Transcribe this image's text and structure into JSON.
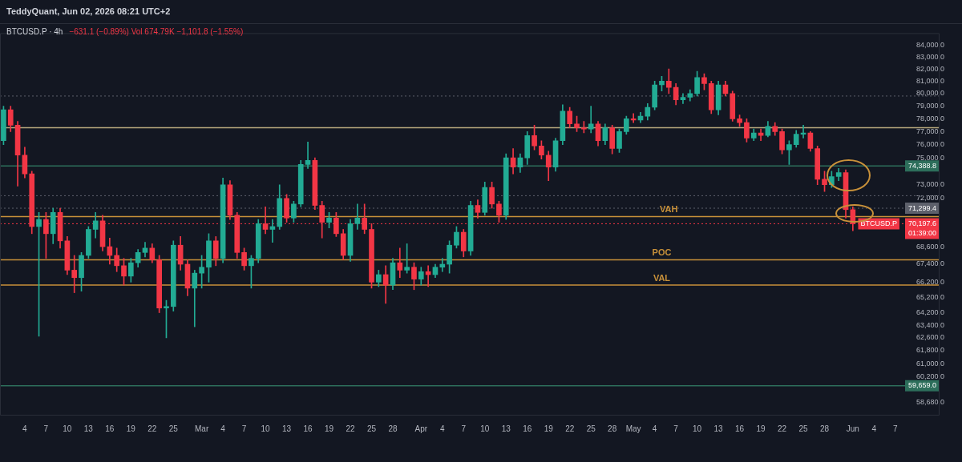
{
  "chart_data": {
    "type": "candlestick",
    "title": "BTCUSD.P · 4h",
    "subtitle": "−631.1 (−0.89%)  Vol 674.79K  −1,101.8 (−1.55%)",
    "annotations": [
      "TeddyQuant, Jun 02, 2026 08:21 UTC+2",
      {
        "text": "VAH",
        "x": "2026-05-06",
        "y": 70700
      },
      {
        "text": "POC",
        "x": "2026-05-05",
        "y": 67700
      },
      {
        "text": "VAL",
        "x": "2026-05-05",
        "y": 66000
      },
      {
        "text": "BTCUSD.P",
        "x": "2026-06-04T16:00",
        "y": 70197.6
      }
    ],
    "x": [
      "2026-02-01",
      "2026-02-02",
      "2026-02-03",
      "2026-02-04",
      "2026-02-05",
      "2026-02-06",
      "2026-02-07",
      "2026-02-08",
      "2026-02-09",
      "2026-02-10",
      "2026-02-11",
      "2026-02-12",
      "2026-02-13",
      "2026-02-14",
      "2026-02-15",
      "2026-02-16",
      "2026-02-17",
      "2026-02-18",
      "2026-02-19",
      "2026-02-20",
      "2026-02-21",
      "2026-02-22",
      "2026-02-23",
      "2026-02-24",
      "2026-02-25",
      "2026-02-26",
      "2026-02-27",
      "2026-02-28",
      "2026-03-01",
      "2026-03-02",
      "2026-03-03",
      "2026-03-04",
      "2026-03-05",
      "2026-03-06",
      "2026-03-07",
      "2026-03-08",
      "2026-03-09",
      "2026-03-10",
      "2026-03-11",
      "2026-03-12",
      "2026-03-13",
      "2026-03-14",
      "2026-03-15",
      "2026-03-16",
      "2026-03-17",
      "2026-03-18",
      "2026-03-19",
      "2026-03-20",
      "2026-03-21",
      "2026-03-22",
      "2026-03-23",
      "2026-03-24",
      "2026-03-25",
      "2026-03-26",
      "2026-03-27",
      "2026-03-28",
      "2026-03-29",
      "2026-03-30",
      "2026-03-31",
      "2026-04-01",
      "2026-04-02",
      "2026-04-03",
      "2026-04-04",
      "2026-04-05",
      "2026-04-06",
      "2026-04-07",
      "2026-04-08",
      "2026-04-09",
      "2026-04-10",
      "2026-04-11",
      "2026-04-12",
      "2026-04-13",
      "2026-04-14",
      "2026-04-15",
      "2026-04-16",
      "2026-04-17",
      "2026-04-18",
      "2026-04-19",
      "2026-04-20",
      "2026-04-21",
      "2026-04-22",
      "2026-04-23",
      "2026-04-24",
      "2026-04-25",
      "2026-04-26",
      "2026-04-27",
      "2026-04-28",
      "2026-04-29",
      "2026-04-30",
      "2026-05-01",
      "2026-05-02",
      "2026-05-03",
      "2026-05-04",
      "2026-05-05",
      "2026-05-06",
      "2026-05-07",
      "2026-05-08",
      "2026-05-09",
      "2026-05-10",
      "2026-05-11",
      "2026-05-12",
      "2026-05-13",
      "2026-05-14",
      "2026-05-15",
      "2026-05-16",
      "2026-05-17",
      "2026-05-18",
      "2026-05-19",
      "2026-05-20",
      "2026-05-21",
      "2026-05-22",
      "2026-05-23",
      "2026-05-24",
      "2026-05-25",
      "2026-05-26",
      "2026-05-27",
      "2026-05-28",
      "2026-05-29",
      "2026-05-30",
      "2026-05-31",
      "2026-06-01"
    ],
    "ohlc": [
      [
        76300,
        79000,
        76000,
        78700
      ],
      [
        78700,
        79000,
        77000,
        77500
      ],
      [
        77500,
        77800,
        72900,
        75200
      ],
      [
        75200,
        75800,
        73500,
        73800
      ],
      [
        73800,
        74000,
        69500,
        70000
      ],
      [
        70000,
        71000,
        62700,
        70500
      ],
      [
        70500,
        71000,
        67800,
        69500
      ],
      [
        69500,
        71300,
        68800,
        71000
      ],
      [
        71000,
        71300,
        68500,
        69000
      ],
      [
        69000,
        69300,
        66700,
        67000
      ],
      [
        67000,
        68000,
        65500,
        66500
      ],
      [
        66500,
        68200,
        65600,
        68000
      ],
      [
        68000,
        70000,
        67800,
        69800
      ],
      [
        69800,
        71000,
        69200,
        70400
      ],
      [
        70400,
        70800,
        68300,
        68600
      ],
      [
        68600,
        69200,
        67400,
        68000
      ],
      [
        68000,
        68500,
        66900,
        67300
      ],
      [
        67300,
        67800,
        66000,
        66600
      ],
      [
        66600,
        67800,
        66200,
        67500
      ],
      [
        67500,
        68400,
        67200,
        68200
      ],
      [
        68200,
        68900,
        67900,
        68500
      ],
      [
        68500,
        68800,
        67500,
        67700
      ],
      [
        67700,
        68000,
        64200,
        64500
      ],
      [
        64500,
        65000,
        62600,
        64600
      ],
      [
        64600,
        69000,
        64300,
        68700
      ],
      [
        68700,
        69300,
        67000,
        67400
      ],
      [
        67400,
        67700,
        65300,
        65800
      ],
      [
        65800,
        67000,
        63300,
        66800
      ],
      [
        66800,
        68000,
        65800,
        67200
      ],
      [
        67200,
        69500,
        66200,
        69000
      ],
      [
        69000,
        69300,
        67300,
        67800
      ],
      [
        67800,
        73500,
        67500,
        73000
      ],
      [
        73000,
        73300,
        70500,
        70800
      ],
      [
        70800,
        71000,
        67800,
        68200
      ],
      [
        68200,
        68500,
        67000,
        67300
      ],
      [
        67300,
        68000,
        65800,
        67800
      ],
      [
        67800,
        70500,
        67500,
        70200
      ],
      [
        70200,
        71400,
        69500,
        69800
      ],
      [
        69800,
        70500,
        68900,
        70000
      ],
      [
        70000,
        73000,
        69800,
        72000
      ],
      [
        72000,
        72300,
        70300,
        70600
      ],
      [
        70600,
        71800,
        70300,
        71600
      ],
      [
        71600,
        74800,
        71400,
        74500
      ],
      [
        74500,
        76200,
        74200,
        74800
      ],
      [
        74800,
        75000,
        71200,
        71500
      ],
      [
        71500,
        71800,
        69200,
        70300
      ],
      [
        70300,
        71000,
        69900,
        70600
      ],
      [
        70600,
        71000,
        69300,
        69500
      ],
      [
        69500,
        69800,
        67700,
        68000
      ],
      [
        68000,
        70500,
        67600,
        70200
      ],
      [
        70200,
        71600,
        69800,
        70600
      ],
      [
        70600,
        71600,
        69500,
        69800
      ],
      [
        69800,
        70200,
        65800,
        66200
      ],
      [
        66200,
        67000,
        65900,
        66700
      ],
      [
        66700,
        67300,
        64800,
        66000
      ],
      [
        66000,
        67800,
        65700,
        67500
      ],
      [
        67500,
        68500,
        66500,
        67000
      ],
      [
        67000,
        68800,
        66800,
        67200
      ],
      [
        67200,
        67500,
        65700,
        66400
      ],
      [
        66400,
        67200,
        66000,
        66900
      ],
      [
        66900,
        67300,
        65900,
        66700
      ],
      [
        66700,
        67400,
        66500,
        67200
      ],
      [
        67200,
        67800,
        66900,
        67400
      ],
      [
        67400,
        69000,
        66800,
        68700
      ],
      [
        68700,
        70000,
        68500,
        69600
      ],
      [
        69600,
        69800,
        67900,
        68300
      ],
      [
        68300,
        71800,
        68000,
        71500
      ],
      [
        71500,
        71900,
        70600,
        71000
      ],
      [
        71000,
        73200,
        70800,
        72800
      ],
      [
        72800,
        73200,
        71300,
        71600
      ],
      [
        71600,
        71800,
        70300,
        70800
      ],
      [
        70800,
        75300,
        70500,
        75000
      ],
      [
        75000,
        75700,
        73800,
        74300
      ],
      [
        74300,
        75300,
        73900,
        75000
      ],
      [
        75000,
        77000,
        74500,
        76700
      ],
      [
        76700,
        77500,
        75600,
        75900
      ],
      [
        75900,
        76300,
        74900,
        75200
      ],
      [
        75200,
        75500,
        73300,
        74300
      ],
      [
        74300,
        76500,
        74000,
        76300
      ],
      [
        76300,
        79100,
        76000,
        78600
      ],
      [
        78600,
        78900,
        77300,
        77600
      ],
      [
        77600,
        78200,
        77000,
        77300
      ],
      [
        77300,
        77800,
        76900,
        77200
      ],
      [
        77200,
        79000,
        76900,
        77600
      ],
      [
        77600,
        77800,
        75900,
        76300
      ],
      [
        76300,
        77600,
        76000,
        77300
      ],
      [
        77300,
        77500,
        75300,
        75700
      ],
      [
        75700,
        77200,
        75400,
        77000
      ],
      [
        77000,
        78200,
        76800,
        78000
      ],
      [
        78000,
        78400,
        77700,
        77900
      ],
      [
        77900,
        78500,
        77700,
        78200
      ],
      [
        78200,
        79200,
        77900,
        78900
      ],
      [
        78900,
        81000,
        78700,
        80700
      ],
      [
        80700,
        81400,
        80200,
        81000
      ],
      [
        81000,
        82000,
        80000,
        80500
      ],
      [
        80500,
        80800,
        79100,
        79500
      ],
      [
        79500,
        80000,
        79200,
        79700
      ],
      [
        79700,
        80300,
        79400,
        80000
      ],
      [
        80000,
        81800,
        79800,
        81300
      ],
      [
        81300,
        81600,
        80300,
        80800
      ],
      [
        80800,
        81000,
        78400,
        78700
      ],
      [
        78700,
        81000,
        78300,
        80700
      ],
      [
        80700,
        81000,
        79800,
        80000
      ],
      [
        80000,
        80200,
        77800,
        78000
      ],
      [
        78000,
        78300,
        77400,
        77700
      ],
      [
        77700,
        78000,
        76200,
        76500
      ],
      [
        76500,
        77200,
        76300,
        76900
      ],
      [
        76900,
        77200,
        76300,
        76700
      ],
      [
        76700,
        77800,
        76600,
        77400
      ],
      [
        77400,
        77700,
        76700,
        77000
      ],
      [
        77000,
        77200,
        75300,
        75600
      ],
      [
        75600,
        76300,
        74500,
        76000
      ],
      [
        76000,
        77100,
        75800,
        76800
      ],
      [
        76800,
        77500,
        76500,
        76900
      ],
      [
        76900,
        77000,
        75500,
        75700
      ],
      [
        75700,
        75900,
        73000,
        73400
      ],
      [
        73400,
        74000,
        72500,
        73000
      ],
      [
        73000,
        74000,
        72800,
        73600
      ],
      [
        73600,
        74200,
        73300,
        73900
      ],
      [
        73900,
        74100,
        70600,
        71200
      ],
      [
        71200,
        71400,
        69700,
        70197.6
      ]
    ],
    "colors": [
      "#22ab94",
      "#f23645",
      "#f23645",
      "#f23645",
      "#f23645",
      "#22ab94",
      "#f23645",
      "#22ab94",
      "#f23645",
      "#f23645",
      "#f23645",
      "#22ab94",
      "#22ab94",
      "#22ab94",
      "#f23645",
      "#f23645",
      "#f23645",
      "#f23645",
      "#22ab94",
      "#22ab94",
      "#22ab94",
      "#f23645",
      "#f23645",
      "#22ab94",
      "#22ab94",
      "#f23645",
      "#f23645",
      "#22ab94",
      "#22ab94",
      "#22ab94",
      "#f23645",
      "#22ab94",
      "#f23645",
      "#f23645",
      "#f23645",
      "#22ab94",
      "#22ab94",
      "#f23645",
      "#22ab94",
      "#22ab94",
      "#f23645",
      "#22ab94",
      "#22ab94",
      "#22ab94",
      "#f23645",
      "#f23645",
      "#22ab94",
      "#f23645",
      "#f23645",
      "#22ab94",
      "#22ab94",
      "#f23645",
      "#f23645",
      "#22ab94",
      "#f23645",
      "#22ab94",
      "#f23645",
      "#22ab94",
      "#f23645",
      "#22ab94",
      "#f23645",
      "#22ab94",
      "#22ab94",
      "#22ab94",
      "#22ab94",
      "#f23645",
      "#22ab94",
      "#f23645",
      "#22ab94",
      "#f23645",
      "#f23645",
      "#22ab94",
      "#f23645",
      "#22ab94",
      "#22ab94",
      "#f23645",
      "#f23645",
      "#f23645",
      "#22ab94",
      "#22ab94",
      "#f23645",
      "#f23645",
      "#f23645",
      "#22ab94",
      "#f23645",
      "#22ab94",
      "#f23645",
      "#22ab94",
      "#22ab94",
      "#f23645",
      "#22ab94",
      "#22ab94",
      "#22ab94",
      "#22ab94",
      "#f23645",
      "#f23645",
      "#22ab94",
      "#22ab94",
      "#22ab94",
      "#f23645",
      "#f23645",
      "#22ab94",
      "#f23645",
      "#f23645",
      "#f23645",
      "#f23645",
      "#22ab94",
      "#f23645",
      "#22ab94",
      "#f23645",
      "#f23645",
      "#22ab94",
      "#22ab94",
      "#22ab94",
      "#f23645",
      "#f23645",
      "#f23645",
      "#22ab94",
      "#22ab94",
      "#f23645",
      "#f23645"
    ],
    "log": true,
    "xlim": [
      "2026-01-31T12:00",
      "2026-06-13T06:00"
    ],
    "xticks": [
      {
        "value": "2026-02-04",
        "label": "4"
      },
      {
        "value": "2026-02-07",
        "label": "7"
      },
      {
        "value": "2026-02-10",
        "label": "10"
      },
      {
        "value": "2026-02-13",
        "label": "13"
      },
      {
        "value": "2026-02-16",
        "label": "16"
      },
      {
        "value": "2026-02-19",
        "label": "19"
      },
      {
        "value": "2026-02-22",
        "label": "22"
      },
      {
        "value": "2026-02-25",
        "label": "25"
      },
      {
        "value": "2026-03-01",
        "label": "Mar"
      },
      {
        "value": "2026-03-04",
        "label": "4"
      },
      {
        "value": "2026-03-07",
        "label": "7"
      },
      {
        "value": "2026-03-10",
        "label": "10"
      },
      {
        "value": "2026-03-13",
        "label": "13"
      },
      {
        "value": "2026-03-16",
        "label": "16"
      },
      {
        "value": "2026-03-19",
        "label": "19"
      },
      {
        "value": "2026-03-22",
        "label": "22"
      },
      {
        "value": "2026-03-25",
        "label": "25"
      },
      {
        "value": "2026-03-28",
        "label": "28"
      },
      {
        "value": "2026-04-01",
        "label": "Apr"
      },
      {
        "value": "2026-04-04",
        "label": "4"
      },
      {
        "value": "2026-04-07",
        "label": "7"
      },
      {
        "value": "2026-04-10",
        "label": "10"
      },
      {
        "value": "2026-04-13",
        "label": "13"
      },
      {
        "value": "2026-04-16",
        "label": "16"
      },
      {
        "value": "2026-04-19",
        "label": "19"
      },
      {
        "value": "2026-04-22",
        "label": "22"
      },
      {
        "value": "2026-04-25",
        "label": "25"
      },
      {
        "value": "2026-04-28",
        "label": "28"
      },
      {
        "value": "2026-05-01",
        "label": "May"
      },
      {
        "value": "2026-05-04",
        "label": "4"
      },
      {
        "value": "2026-05-07",
        "label": "7"
      },
      {
        "value": "2026-05-10",
        "label": "10"
      },
      {
        "value": "2026-05-13",
        "label": "13"
      },
      {
        "value": "2026-05-16",
        "label": "16"
      },
      {
        "value": "2026-05-19",
        "label": "19"
      },
      {
        "value": "2026-05-22",
        "label": "22"
      },
      {
        "value": "2026-05-25",
        "label": "25"
      },
      {
        "value": "2026-05-28",
        "label": "28"
      },
      {
        "value": "2026-06-01",
        "label": "Jun"
      },
      {
        "value": "2026-06-04",
        "label": "4"
      },
      {
        "value": "2026-06-07",
        "label": "7"
      }
    ],
    "ylim": [
      57900,
      85000
    ],
    "yticks": [
      {
        "value": 84000,
        "label": "84,000.0"
      },
      {
        "value": 83000,
        "label": "83,000.0"
      },
      {
        "value": 82000,
        "label": "82,000.0"
      },
      {
        "value": 81000,
        "label": "81,000.0"
      },
      {
        "value": 80000,
        "label": "80,000.0"
      },
      {
        "value": 79000,
        "label": "79,000.0"
      },
      {
        "value": 78000,
        "label": "78,000.0"
      },
      {
        "value": 77000,
        "label": "77,000.0"
      },
      {
        "value": 76000,
        "label": "76,000.0"
      },
      {
        "value": 75000,
        "label": "75,000.0"
      },
      {
        "value": 73000,
        "label": "73,000.0"
      },
      {
        "value": 72000,
        "label": "72,000.0"
      },
      {
        "value": 68600,
        "label": "68,600.0"
      },
      {
        "value": 67400,
        "label": "67,400.0"
      },
      {
        "value": 66200,
        "label": "66,200.0"
      },
      {
        "value": 65200,
        "label": "65,200.0"
      },
      {
        "value": 64200,
        "label": "64,200.0"
      },
      {
        "value": 63400,
        "label": "63,400.0"
      },
      {
        "value": 62600,
        "label": "62,600.0"
      },
      {
        "value": 61800,
        "label": "61,800.0"
      },
      {
        "value": 61000,
        "label": "61,000.0"
      },
      {
        "value": 60200,
        "label": "60,200.0"
      },
      {
        "value": 58680,
        "label": "58,680.0"
      }
    ],
    "ref_lines": [
      {
        "axis": "y",
        "value": 74388.8,
        "label": "74,388.8",
        "color": "#2d6e5b",
        "line_style": "solid"
      },
      {
        "axis": "y",
        "value": 59659.0,
        "label": "59,659.0",
        "color": "#2d6e5b",
        "line_style": "solid"
      },
      {
        "axis": "y",
        "value": 71299.4,
        "label": "71,299.4",
        "color": "#5d606b",
        "line_style": "dotted"
      },
      {
        "axis": "y",
        "value": 70197.6,
        "label": "70,197.6\n01:39:00",
        "color": "#f23645",
        "line_style": "dotted"
      },
      {
        "axis": "y",
        "value": 77300,
        "color": "#b8a97e",
        "line_style": "solid"
      },
      {
        "axis": "y",
        "value": 79800,
        "color": "#5d606b",
        "line_style": "dotted"
      },
      {
        "axis": "y",
        "value": 72200,
        "color": "#5d606b",
        "line_style": "dotted"
      },
      {
        "axis": "y",
        "value": 70700,
        "color": "#c8913a",
        "line_style": "solid"
      },
      {
        "axis": "y",
        "value": 67700,
        "color": "#c8913a",
        "line_style": "solid"
      },
      {
        "axis": "y",
        "value": 66000,
        "color": "#c8913a",
        "line_style": "solid"
      }
    ]
  }
}
